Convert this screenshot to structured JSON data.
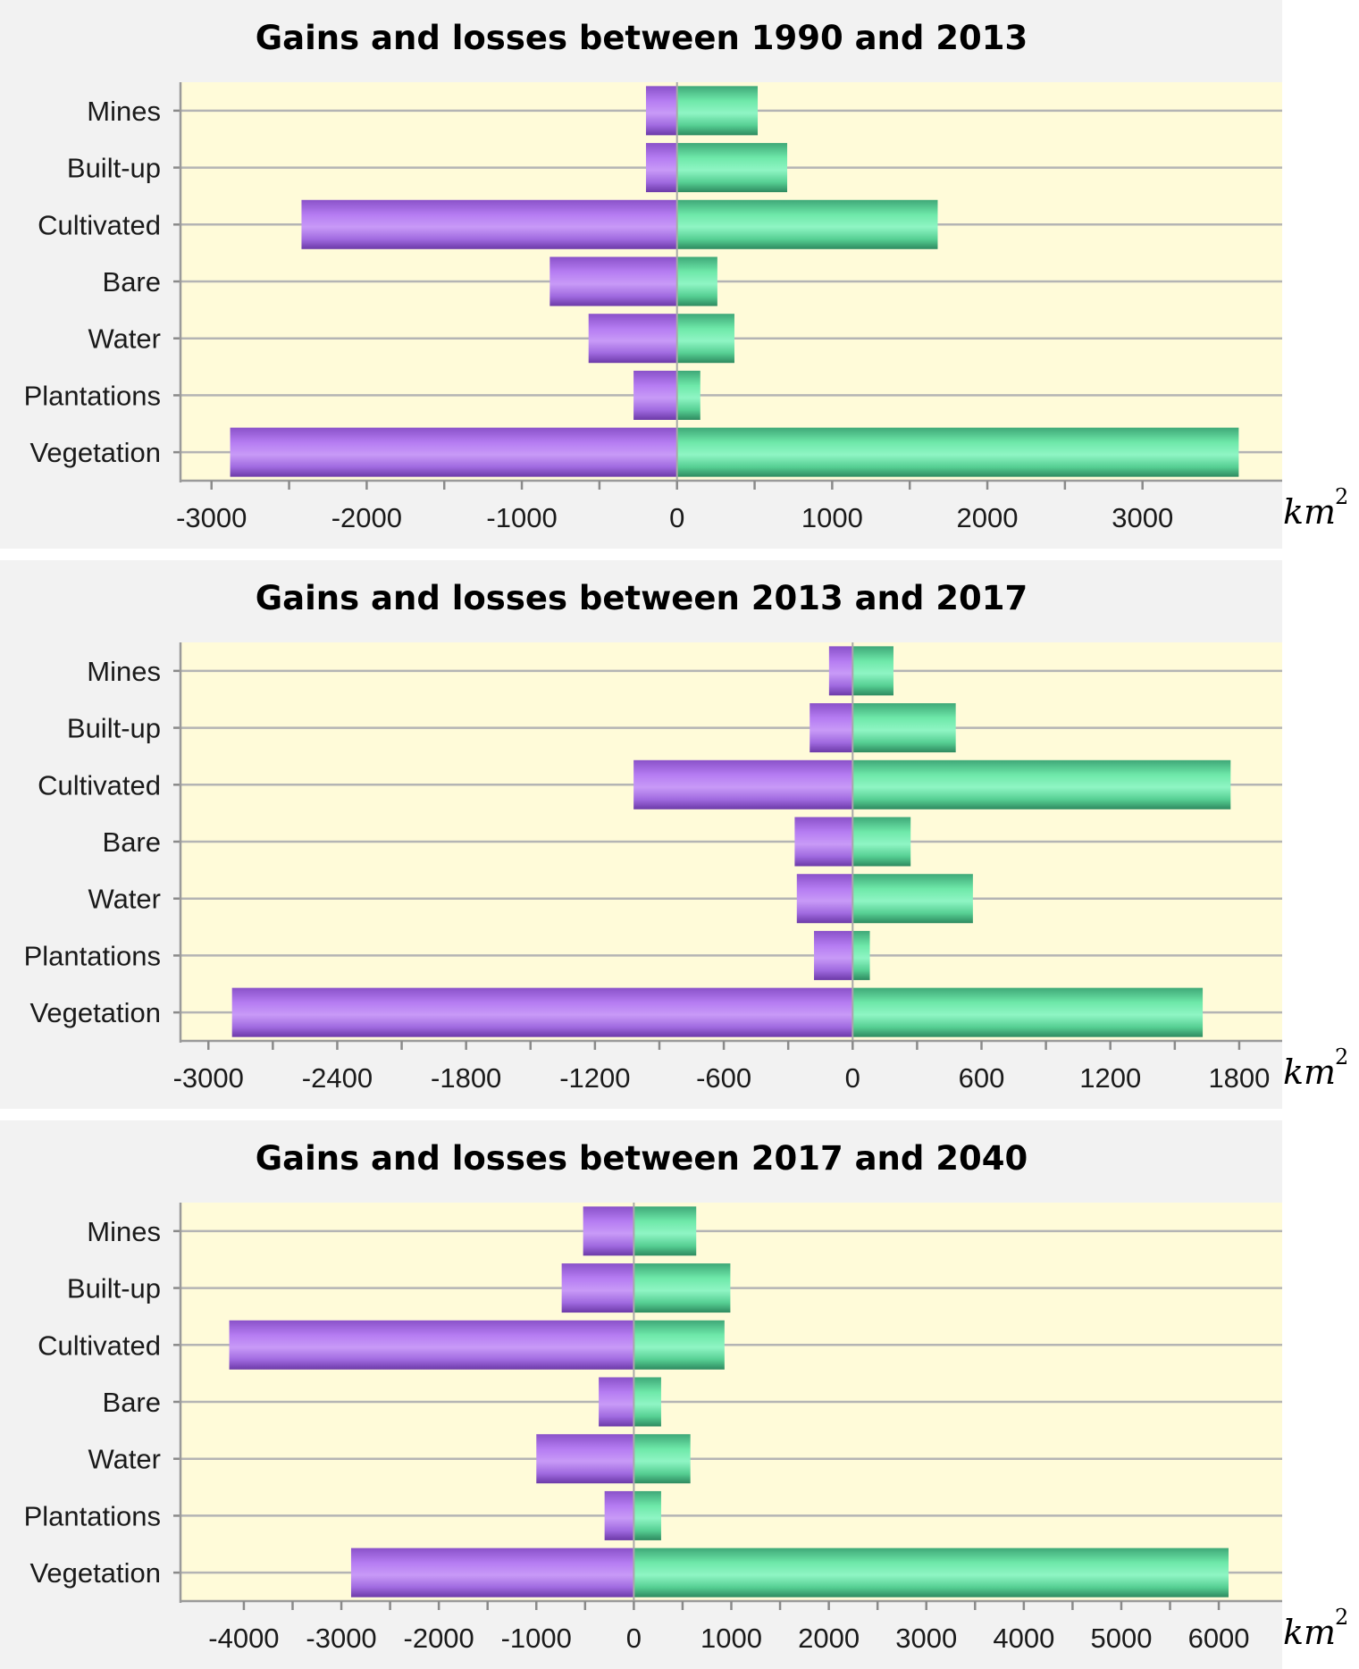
{
  "colors": {
    "loss": "#b57cf2",
    "gain": "#6ee8a9",
    "panel_background": "#f2f2f2",
    "plot_background": "#fffbd9"
  },
  "chart_data": [
    {
      "type": "bar",
      "orientation": "horizontal",
      "title": "Gains and losses between 1990 and 2013",
      "xlabel": "km",
      "xlabel_sup": "2",
      "categories": [
        "Mines",
        "Built-up",
        "Cultivated",
        "Bare",
        "Water",
        "Plantations",
        "Vegetation"
      ],
      "series": [
        {
          "values": [
            -200,
            -200,
            -2420,
            -820,
            -570,
            -280,
            -2880
          ]
        },
        {
          "values": [
            520,
            710,
            1680,
            260,
            370,
            150,
            3620
          ]
        }
      ],
      "xlim": [
        -3200,
        3900
      ],
      "xticks": [
        -3000,
        -2000,
        -1000,
        0,
        1000,
        2000,
        3000
      ],
      "grid": true,
      "legend": "none"
    },
    {
      "type": "bar",
      "orientation": "horizontal",
      "title": "Gains and losses between 2013 and 2017",
      "xlabel": "km",
      "xlabel_sup": "2",
      "categories": [
        "Mines",
        "Built-up",
        "Cultivated",
        "Bare",
        "Water",
        "Plantations",
        "Vegetation"
      ],
      "series": [
        {
          "values": [
            -110,
            -200,
            -1020,
            -270,
            -260,
            -180,
            -2890
          ]
        },
        {
          "values": [
            190,
            480,
            1760,
            270,
            560,
            80,
            1630
          ]
        }
      ],
      "xlim": [
        -3130,
        2000
      ],
      "xticks": [
        -3000,
        -2400,
        -1800,
        -1200,
        -600,
        0,
        600,
        1200,
        1800
      ],
      "grid": true,
      "legend": "none"
    },
    {
      "type": "bar",
      "orientation": "horizontal",
      "title": "Gains and losses between 2017 and 2040",
      "xlabel": "km",
      "xlabel_sup": "2",
      "categories": [
        "Mines",
        "Built-up",
        "Cultivated",
        "Bare",
        "Water",
        "Plantations",
        "Vegetation"
      ],
      "series": [
        {
          "values": [
            -520,
            -740,
            -4150,
            -360,
            -1000,
            -300,
            -2900
          ]
        },
        {
          "values": [
            640,
            990,
            930,
            280,
            580,
            280,
            6100
          ]
        }
      ],
      "xlim": [
        -4650,
        6650
      ],
      "xticks": [
        -4000,
        -3000,
        -2000,
        -1000,
        0,
        1000,
        2000,
        3000,
        4000,
        5000,
        6000
      ],
      "grid": true,
      "legend": "none"
    }
  ]
}
